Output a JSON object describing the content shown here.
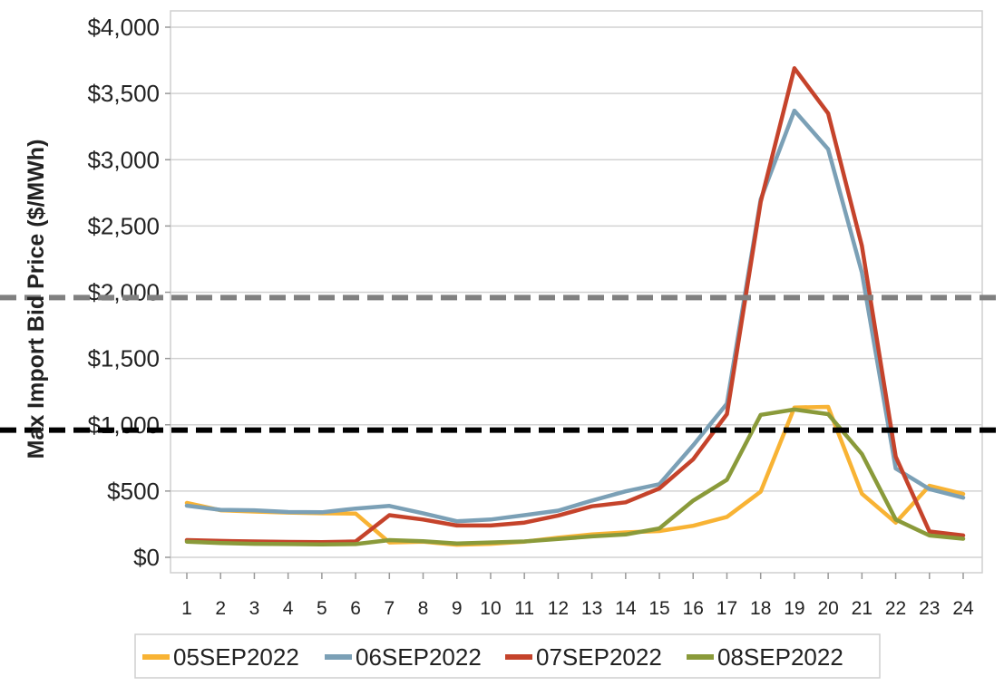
{
  "chart_data": {
    "type": "line",
    "title": "",
    "xlabel": "",
    "ylabel": "Max Import Bid Price ($/MWh)",
    "x": [
      1,
      2,
      3,
      4,
      5,
      6,
      7,
      8,
      9,
      10,
      11,
      12,
      13,
      14,
      15,
      16,
      17,
      18,
      19,
      20,
      21,
      22,
      23,
      24
    ],
    "ylim": [
      0,
      4000
    ],
    "yticks": [
      0,
      500,
      1000,
      1500,
      2000,
      2500,
      3000,
      3500,
      4000
    ],
    "ytick_labels": [
      "$0",
      "$500",
      "$1,000",
      "$1,500",
      "$2,000",
      "$2,500",
      "$3,000",
      "$3,500",
      "$4,000"
    ],
    "grid": true,
    "legend_position": "bottom",
    "series": [
      {
        "name": "05SEP2022",
        "color": "#F8B334",
        "values": [
          410,
          355,
          345,
          338,
          332,
          330,
          112,
          118,
          95,
          102,
          118,
          148,
          172,
          188,
          198,
          238,
          305,
          495,
          1130,
          1135,
          480,
          262,
          540,
          478
        ]
      },
      {
        "name": "06SEP2022",
        "color": "#7BA0B6",
        "values": [
          390,
          358,
          355,
          342,
          340,
          368,
          388,
          332,
          272,
          285,
          318,
          352,
          428,
          498,
          552,
          845,
          1160,
          2700,
          3370,
          3080,
          2150,
          670,
          515,
          450
        ]
      },
      {
        "name": "07SEP2022",
        "color": "#C5432B",
        "values": [
          130,
          124,
          120,
          116,
          114,
          120,
          318,
          285,
          240,
          240,
          262,
          315,
          385,
          415,
          520,
          740,
          1080,
          2680,
          3690,
          3350,
          2350,
          760,
          195,
          165
        ]
      },
      {
        "name": "08SEP2022",
        "color": "#8A9A3A",
        "values": [
          118,
          108,
          102,
          100,
          98,
          100,
          130,
          122,
          104,
          112,
          120,
          138,
          158,
          172,
          218,
          428,
          585,
          1075,
          1115,
          1080,
          780,
          285,
          165,
          140
        ]
      }
    ],
    "reference_lines": [
      {
        "value": 1960,
        "color": "#808080",
        "style": "dashed"
      },
      {
        "value": 960,
        "color": "#000000",
        "style": "dashed"
      }
    ]
  }
}
